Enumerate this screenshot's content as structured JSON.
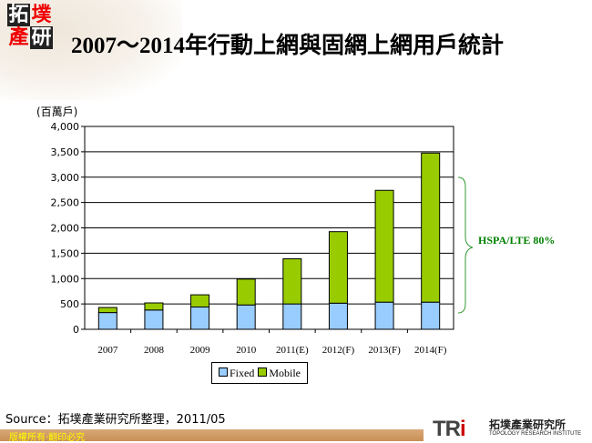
{
  "header": {
    "logo_text": "拓墣產研",
    "title": "2007～2014年行動上網與固網上網用戶統計"
  },
  "chart_data": {
    "type": "bar",
    "stacked": true,
    "title": "2007～2014年行動上網與固網上網用戶統計",
    "ylabel": "(百萬戶)",
    "categories": [
      "2007",
      "2008",
      "2009",
      "2010",
      "2011(E)",
      "2012(F)",
      "2013(F)",
      "2014(F)"
    ],
    "series": [
      {
        "name": "Fixed",
        "color": "#99ccff",
        "values": [
          330,
          380,
          440,
          480,
          500,
          515,
          535,
          535
        ]
      },
      {
        "name": "Mobile",
        "color": "#99cc00",
        "values": [
          100,
          140,
          240,
          510,
          890,
          1410,
          2205,
          2940
        ]
      }
    ],
    "ylim": [
      0,
      4000
    ],
    "yticks": [
      "0",
      "500",
      "1,000",
      "1,500",
      "2,000",
      "2,500",
      "3,000",
      "3,500",
      "4,000"
    ],
    "grid": true,
    "legend": "bottom",
    "annotation": "HSPA/LTE 80%"
  },
  "footer": {
    "source": "Source：拓墣產業研究所整理，2011/05",
    "copyright": "版權所有‧翻印必究",
    "brand_mark": "TRi",
    "brand_cn": "拓墣產業研究所",
    "brand_en": "TOPOLOGY RESEARCH INSTITUTE"
  }
}
